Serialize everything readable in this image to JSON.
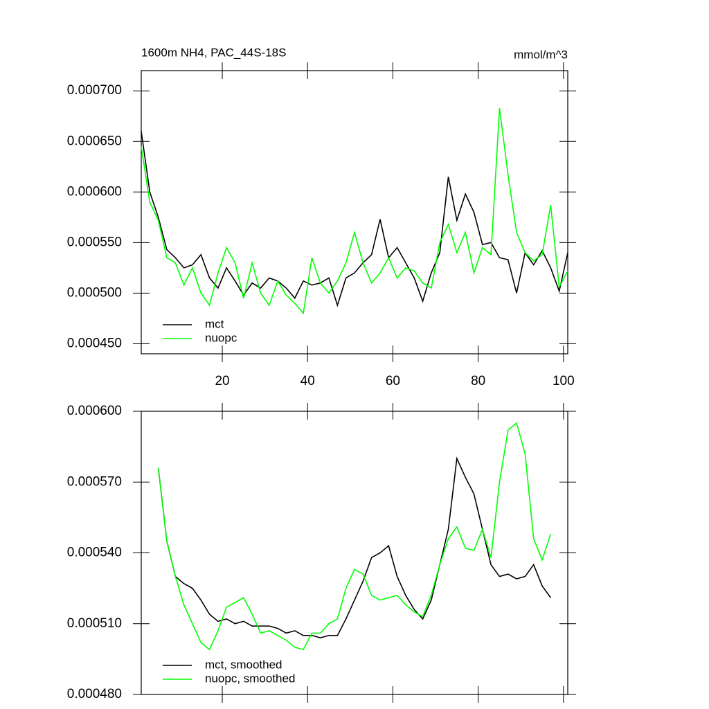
{
  "chart_data": [
    {
      "type": "line",
      "title": "1600m NH4, PAC_44S-18S",
      "units": "mmol/m^3",
      "x": [
        1,
        3,
        5,
        7,
        9,
        11,
        13,
        15,
        17,
        19,
        21,
        23,
        25,
        27,
        29,
        31,
        33,
        35,
        37,
        39,
        41,
        43,
        45,
        47,
        49,
        51,
        53,
        55,
        57,
        59,
        61,
        63,
        65,
        67,
        69,
        71,
        73,
        75,
        77,
        79,
        81,
        83,
        85,
        87,
        89,
        91,
        93,
        95,
        97,
        99,
        101
      ],
      "series": [
        {
          "name": "mct",
          "color": "#000000",
          "values": [
            0.00066,
            0.0006,
            0.000575,
            0.000543,
            0.000535,
            0.000525,
            0.000528,
            0.000538,
            0.000515,
            0.000505,
            0.000525,
            0.000512,
            0.000498,
            0.00051,
            0.000505,
            0.000515,
            0.000512,
            0.000505,
            0.000495,
            0.000512,
            0.000508,
            0.00051,
            0.000515,
            0.000488,
            0.000515,
            0.00052,
            0.00053,
            0.000538,
            0.000573,
            0.000535,
            0.000545,
            0.00053,
            0.000515,
            0.000492,
            0.00052,
            0.00054,
            0.000615,
            0.000572,
            0.000598,
            0.00058,
            0.000548,
            0.00055,
            0.000535,
            0.000533,
            0.0005,
            0.00054,
            0.000528,
            0.000542,
            0.000525,
            0.000502,
            0.00054
          ]
        },
        {
          "name": "nuopc",
          "color": "#00ff00",
          "values": [
            0.000645,
            0.00059,
            0.000572,
            0.000535,
            0.00053,
            0.000508,
            0.000525,
            0.0005,
            0.000488,
            0.00052,
            0.000545,
            0.00053,
            0.000495,
            0.00053,
            0.0005,
            0.000488,
            0.000512,
            0.000498,
            0.00049,
            0.00048,
            0.000535,
            0.00051,
            0.0005,
            0.000512,
            0.00053,
            0.00056,
            0.00053,
            0.00051,
            0.00052,
            0.000535,
            0.000515,
            0.000525,
            0.000522,
            0.00051,
            0.000505,
            0.00055,
            0.000568,
            0.00054,
            0.00056,
            0.00052,
            0.000545,
            0.000538,
            0.000683,
            0.000617,
            0.00056,
            0.00054,
            0.000532,
            0.000538,
            0.000587,
            0.000506,
            0.000522
          ]
        }
      ],
      "xlim": [
        1,
        101
      ],
      "xticks": [
        20,
        40,
        60,
        80,
        100
      ],
      "ylim": [
        0.00044,
        0.00072
      ],
      "yticks": [
        {
          "value": 0.00045,
          "label": "0.000450"
        },
        {
          "value": 0.0005,
          "label": "0.000500"
        },
        {
          "value": 0.00055,
          "label": "0.000550"
        },
        {
          "value": 0.0006,
          "label": "0.000600"
        },
        {
          "value": 0.00065,
          "label": "0.000650"
        },
        {
          "value": 0.0007,
          "label": "0.000700"
        }
      ],
      "legend": "lower left"
    },
    {
      "type": "line",
      "x": [
        5,
        7,
        9,
        11,
        13,
        15,
        17,
        19,
        21,
        23,
        25,
        27,
        29,
        31,
        33,
        35,
        37,
        39,
        41,
        43,
        45,
        47,
        49,
        51,
        53,
        55,
        57,
        59,
        61,
        63,
        65,
        67,
        69,
        71,
        73,
        75,
        77,
        79,
        81,
        83,
        85,
        87,
        89,
        91,
        93,
        95,
        97
      ],
      "series": [
        {
          "name": "mct, smoothed",
          "color": "#000000",
          "values": [
            0.000576,
            0.000545,
            0.00053,
            0.000527,
            0.000525,
            0.00052,
            0.000514,
            0.000511,
            0.000512,
            0.00051,
            0.000511,
            0.000509,
            0.000509,
            0.000509,
            0.000508,
            0.000506,
            0.000507,
            0.000505,
            0.000505,
            0.000504,
            0.000505,
            0.000505,
            0.000512,
            0.00052,
            0.000528,
            0.000538,
            0.00054,
            0.000543,
            0.00053,
            0.000522,
            0.000516,
            0.000512,
            0.00052,
            0.000535,
            0.00055,
            0.00058,
            0.000572,
            0.000565,
            0.00055,
            0.000535,
            0.00053,
            0.000531,
            0.000529,
            0.00053,
            0.000535,
            0.000526,
            0.000521
          ]
        },
        {
          "name": "nuopc, smoothed",
          "color": "#00ff00",
          "values": [
            0.000576,
            0.000545,
            0.00053,
            0.000518,
            0.00051,
            0.000502,
            0.000499,
            0.000507,
            0.000517,
            0.000519,
            0.000521,
            0.000514,
            0.000506,
            0.000507,
            0.000505,
            0.000503,
            0.0005,
            0.000499,
            0.000506,
            0.000506,
            0.00051,
            0.000512,
            0.000525,
            0.000533,
            0.000531,
            0.000522,
            0.00052,
            0.000521,
            0.000522,
            0.000518,
            0.000515,
            0.000513,
            0.000522,
            0.000535,
            0.000546,
            0.000551,
            0.000542,
            0.000541,
            0.00055,
            0.000538,
            0.00057,
            0.000592,
            0.000595,
            0.000582,
            0.000546,
            0.000537,
            0.000548
          ]
        }
      ],
      "xlim": [
        1,
        101
      ],
      "xticks": [
        20,
        40,
        60,
        80,
        100
      ],
      "ylim": [
        0.00048,
        0.0006
      ],
      "yticks": [
        {
          "value": 0.00048,
          "label": "0.000480"
        },
        {
          "value": 0.00051,
          "label": "0.000510"
        },
        {
          "value": 0.00054,
          "label": "0.000540"
        },
        {
          "value": 0.00057,
          "label": "0.000570"
        },
        {
          "value": 0.0006,
          "label": "0.000600"
        }
      ],
      "legend": "lower left"
    }
  ]
}
